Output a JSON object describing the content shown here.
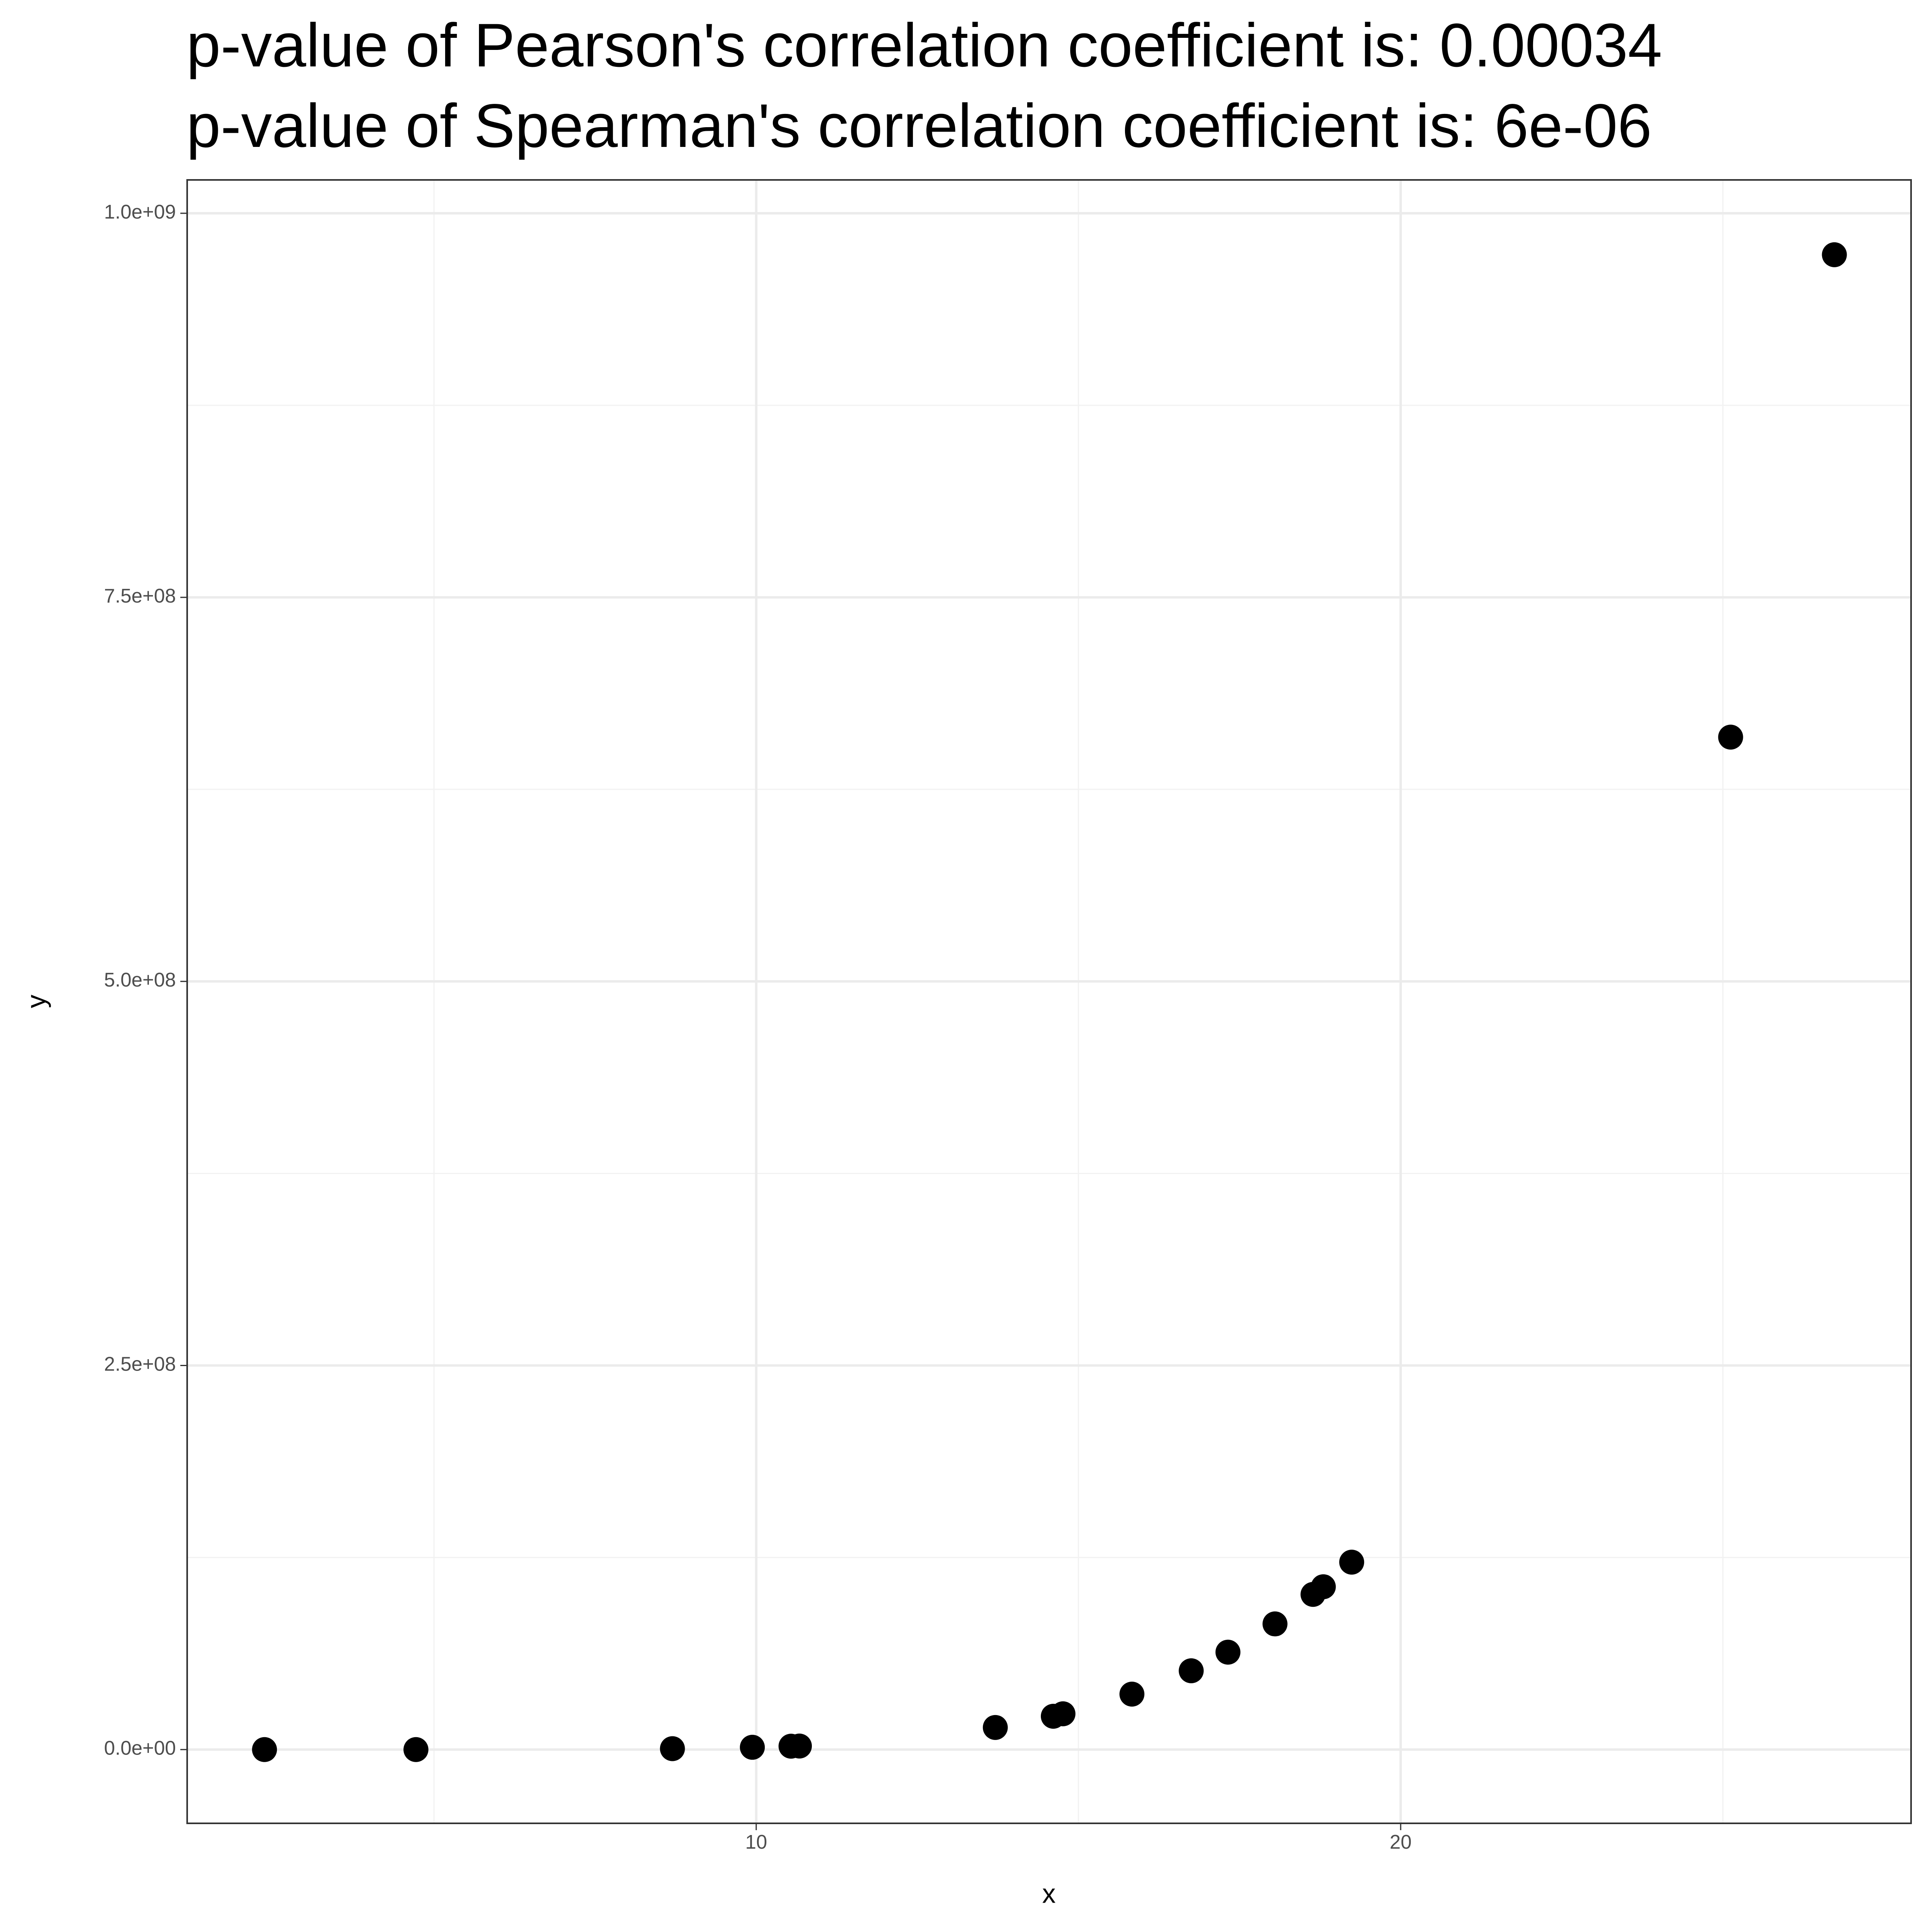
{
  "chart_data": {
    "type": "scatter",
    "title": [
      "p-value of Pearson's correlation coefficient is: 0.00034",
      "p-value of Spearman's correlation coefficient is: 6e-06"
    ],
    "x_label": "x",
    "y_label": "y",
    "x": [
      2.37,
      4.72,
      8.7,
      9.94,
      10.54,
      10.67,
      13.71,
      14.61,
      14.76,
      15.83,
      16.75,
      17.32,
      18.05,
      18.64,
      18.8,
      19.24,
      25.12,
      26.73
    ],
    "values": [
      120,
      10000,
      600000,
      1500000,
      2200000,
      2300000,
      14400000,
      21700000,
      23300000,
      36100000,
      51300000,
      63400000,
      81800000,
      101000000,
      106000000,
      122000000,
      659000000,
      973000000
    ],
    "color": "#000000",
    "xlim": [
      1.17,
      27.92
    ],
    "ylim": [
      -48000000,
      1021700000
    ],
    "xticks": [
      10,
      20
    ],
    "yticks": [
      {
        "value": 0,
        "label": "0.0e+00"
      },
      {
        "value": 250000000,
        "label": "2.5e+08"
      },
      {
        "value": 500000000,
        "label": "5.0e+08"
      },
      {
        "value": 750000000,
        "label": "7.5e+08"
      },
      {
        "value": 1000000000,
        "label": "1.0e+09"
      }
    ],
    "x_minor_ticks": [
      5,
      15,
      25
    ],
    "y_minor_ticks": [
      125000000,
      375000000,
      625000000,
      875000000
    ],
    "grid": true
  }
}
